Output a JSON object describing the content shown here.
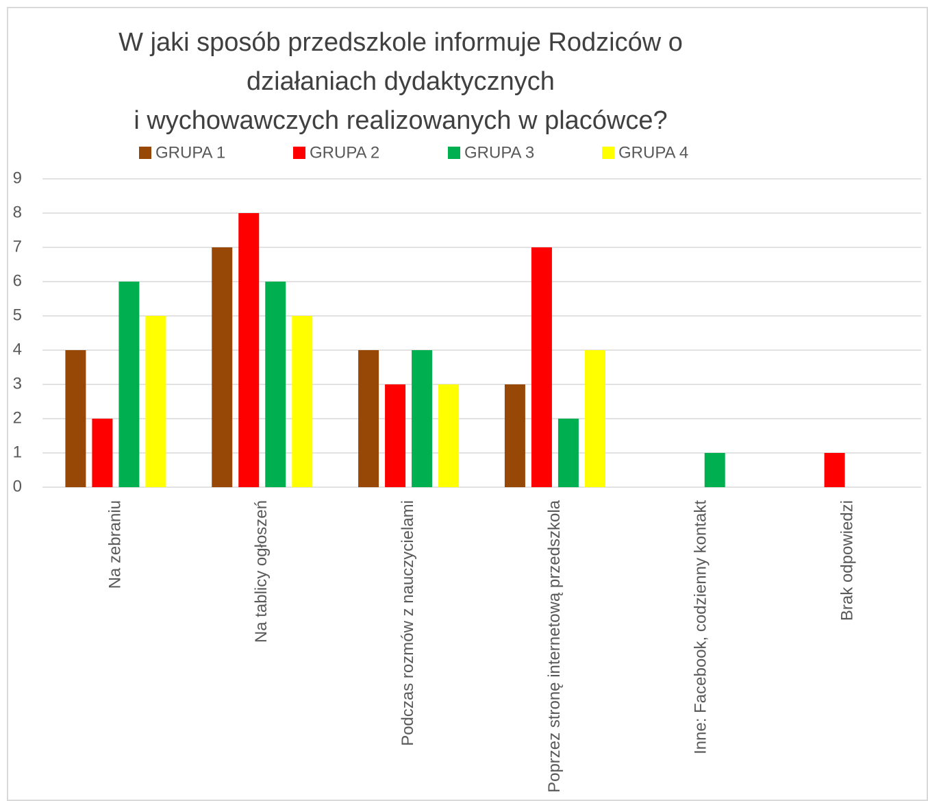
{
  "chart_data": {
    "type": "bar",
    "title": [
      "W jaki sposób przedszkole informuje Rodziców o",
      "działaniach dydaktycznych",
      "i wychowawczych realizowanych w placówce?"
    ],
    "categories": [
      "Na zebraniu",
      "Na tablicy ogłoszeń",
      "Podczas rozmów z nauczycielami",
      "Poprzez stronę internetową przedszkola",
      "Inne: Facebook, codzienny kontakt",
      "Brak odpowiedzi"
    ],
    "series": [
      {
        "name": "GRUPA 1",
        "color": "#974706",
        "values": [
          4,
          7,
          4,
          3,
          0,
          0
        ]
      },
      {
        "name": "GRUPA 2",
        "color": "#ff0000",
        "values": [
          2,
          8,
          3,
          7,
          0,
          1
        ]
      },
      {
        "name": "GRUPA 3",
        "color": "#00b050",
        "values": [
          6,
          6,
          4,
          2,
          1,
          0
        ]
      },
      {
        "name": "GRUPA 4",
        "color": "#ffff00",
        "values": [
          5,
          5,
          3,
          4,
          0,
          0
        ]
      }
    ],
    "ylim": [
      0,
      9
    ],
    "yticks": [
      0,
      1,
      2,
      3,
      4,
      5,
      6,
      7,
      8,
      9
    ],
    "grid": true,
    "legend": "top"
  }
}
